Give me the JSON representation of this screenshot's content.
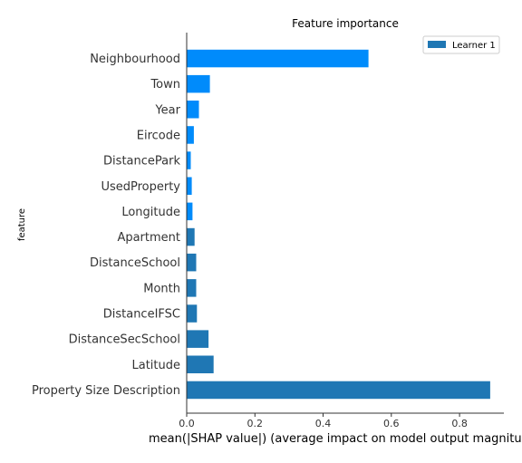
{
  "chart_data": {
    "type": "bar",
    "orientation": "horizontal",
    "title": "Feature importance",
    "xlabel": "mean(|SHAP value|) (average impact on model output magnitu",
    "ylabel": "feature",
    "xlim": [
      0,
      0.93
    ],
    "xticks": [
      "0.0",
      "0.2",
      "0.4",
      "0.6",
      "0.8"
    ],
    "xtick_values": [
      0.0,
      0.2,
      0.4,
      0.6,
      0.8
    ],
    "legend": {
      "placement": "top-right",
      "entries": [
        "Learner 1"
      ]
    },
    "grid": false,
    "categories": [
      "Neighbourhood",
      "Town",
      "Year",
      "Eircode",
      "DistancePark",
      "UsedProperty",
      "Longitude",
      "Apartment",
      "DistanceSchool",
      "Month",
      "DistanceIFSC",
      "DistanceSecSchool",
      "Latitude",
      "Property Size Description"
    ],
    "series": [
      {
        "name": "Learner 1",
        "values": [
          0.533,
          0.068,
          0.036,
          0.021,
          0.012,
          0.015,
          0.017,
          0.023,
          0.028,
          0.028,
          0.03,
          0.064,
          0.079,
          0.89
        ],
        "colors": [
          "#008bfb",
          "#008bfb",
          "#008bfb",
          "#008bfb",
          "#008bfb",
          "#008bfb",
          "#008bfb",
          "#1f77b4",
          "#1f77b4",
          "#1f77b4",
          "#1f77b4",
          "#1f77b4",
          "#1f77b4",
          "#1f77b4"
        ],
        "legend_color": "#1f77b4"
      }
    ]
  }
}
